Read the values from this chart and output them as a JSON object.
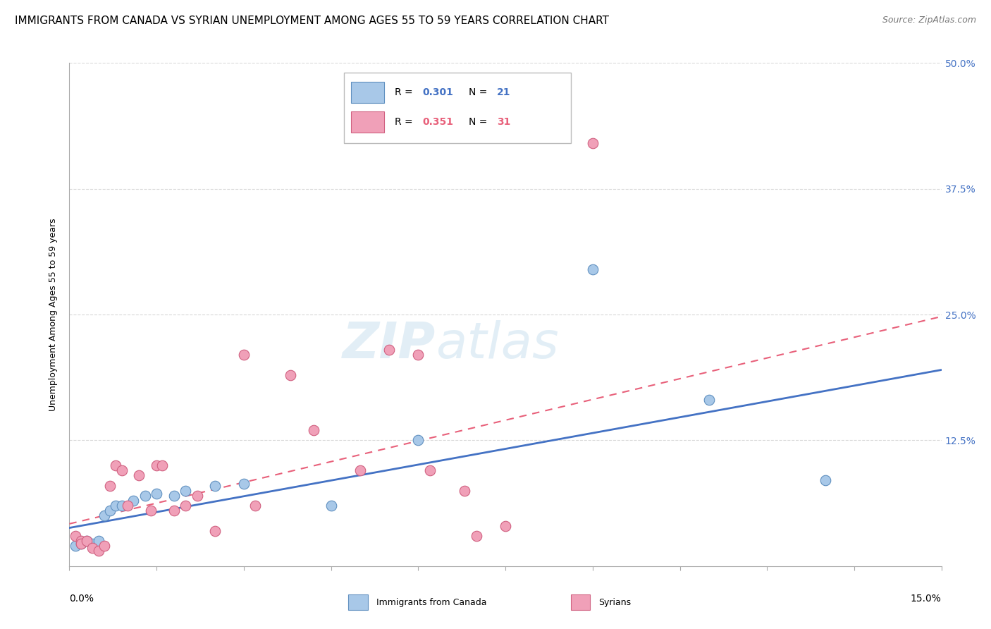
{
  "title": "IMMIGRANTS FROM CANADA VS SYRIAN UNEMPLOYMENT AMONG AGES 55 TO 59 YEARS CORRELATION CHART",
  "source": "Source: ZipAtlas.com",
  "ylabel": "Unemployment Among Ages 55 to 59 years",
  "ytick_labels": [
    "",
    "12.5%",
    "25.0%",
    "37.5%",
    "50.0%"
  ],
  "ytick_values": [
    0,
    0.125,
    0.25,
    0.375,
    0.5
  ],
  "xlim": [
    0.0,
    0.15
  ],
  "ylim": [
    0.0,
    0.5
  ],
  "legend1_R": "0.301",
  "legend1_N": "21",
  "legend2_R": "0.351",
  "legend2_N": "31",
  "legend_color1": "#a8c8e8",
  "legend_color2": "#f0a0b8",
  "watermark_zip": "ZIP",
  "watermark_atlas": "atlas",
  "blue_points_x": [
    0.001,
    0.002,
    0.003,
    0.004,
    0.005,
    0.006,
    0.007,
    0.008,
    0.009,
    0.011,
    0.013,
    0.015,
    0.018,
    0.02,
    0.025,
    0.03,
    0.045,
    0.06,
    0.09,
    0.11,
    0.13
  ],
  "blue_points_y": [
    0.02,
    0.022,
    0.025,
    0.022,
    0.025,
    0.05,
    0.055,
    0.06,
    0.06,
    0.065,
    0.07,
    0.072,
    0.07,
    0.075,
    0.08,
    0.082,
    0.06,
    0.125,
    0.295,
    0.165,
    0.085
  ],
  "pink_points_x": [
    0.001,
    0.002,
    0.002,
    0.003,
    0.004,
    0.005,
    0.006,
    0.007,
    0.008,
    0.009,
    0.01,
    0.012,
    0.014,
    0.015,
    0.016,
    0.018,
    0.02,
    0.022,
    0.025,
    0.03,
    0.032,
    0.038,
    0.042,
    0.05,
    0.055,
    0.06,
    0.062,
    0.068,
    0.07,
    0.075,
    0.09
  ],
  "pink_points_y": [
    0.03,
    0.025,
    0.022,
    0.025,
    0.018,
    0.015,
    0.02,
    0.08,
    0.1,
    0.095,
    0.06,
    0.09,
    0.055,
    0.1,
    0.1,
    0.055,
    0.06,
    0.07,
    0.035,
    0.21,
    0.06,
    0.19,
    0.135,
    0.095,
    0.215,
    0.21,
    0.095,
    0.075,
    0.03,
    0.04,
    0.42
  ],
  "blue_line_x0": 0.0,
  "blue_line_y0": 0.038,
  "blue_line_x1": 0.15,
  "blue_line_y1": 0.195,
  "pink_line_x0": 0.0,
  "pink_line_y0": 0.042,
  "pink_line_x1": 0.15,
  "pink_line_y1": 0.248,
  "blue_line_color": "#4472c4",
  "pink_line_color": "#e8607a",
  "dot_color_blue": "#a8c8e8",
  "dot_color_pink": "#f0a0b8",
  "dot_edge_blue": "#6090c0",
  "dot_edge_pink": "#d06080",
  "grid_color": "#d8d8d8",
  "title_fontsize": 11,
  "source_fontsize": 9,
  "axis_label_fontsize": 9,
  "tick_fontsize": 10,
  "watermark_fontsize_zip": 52,
  "watermark_fontsize_atlas": 52,
  "watermark_color": "#d0e4f0",
  "watermark_alpha": 0.6
}
